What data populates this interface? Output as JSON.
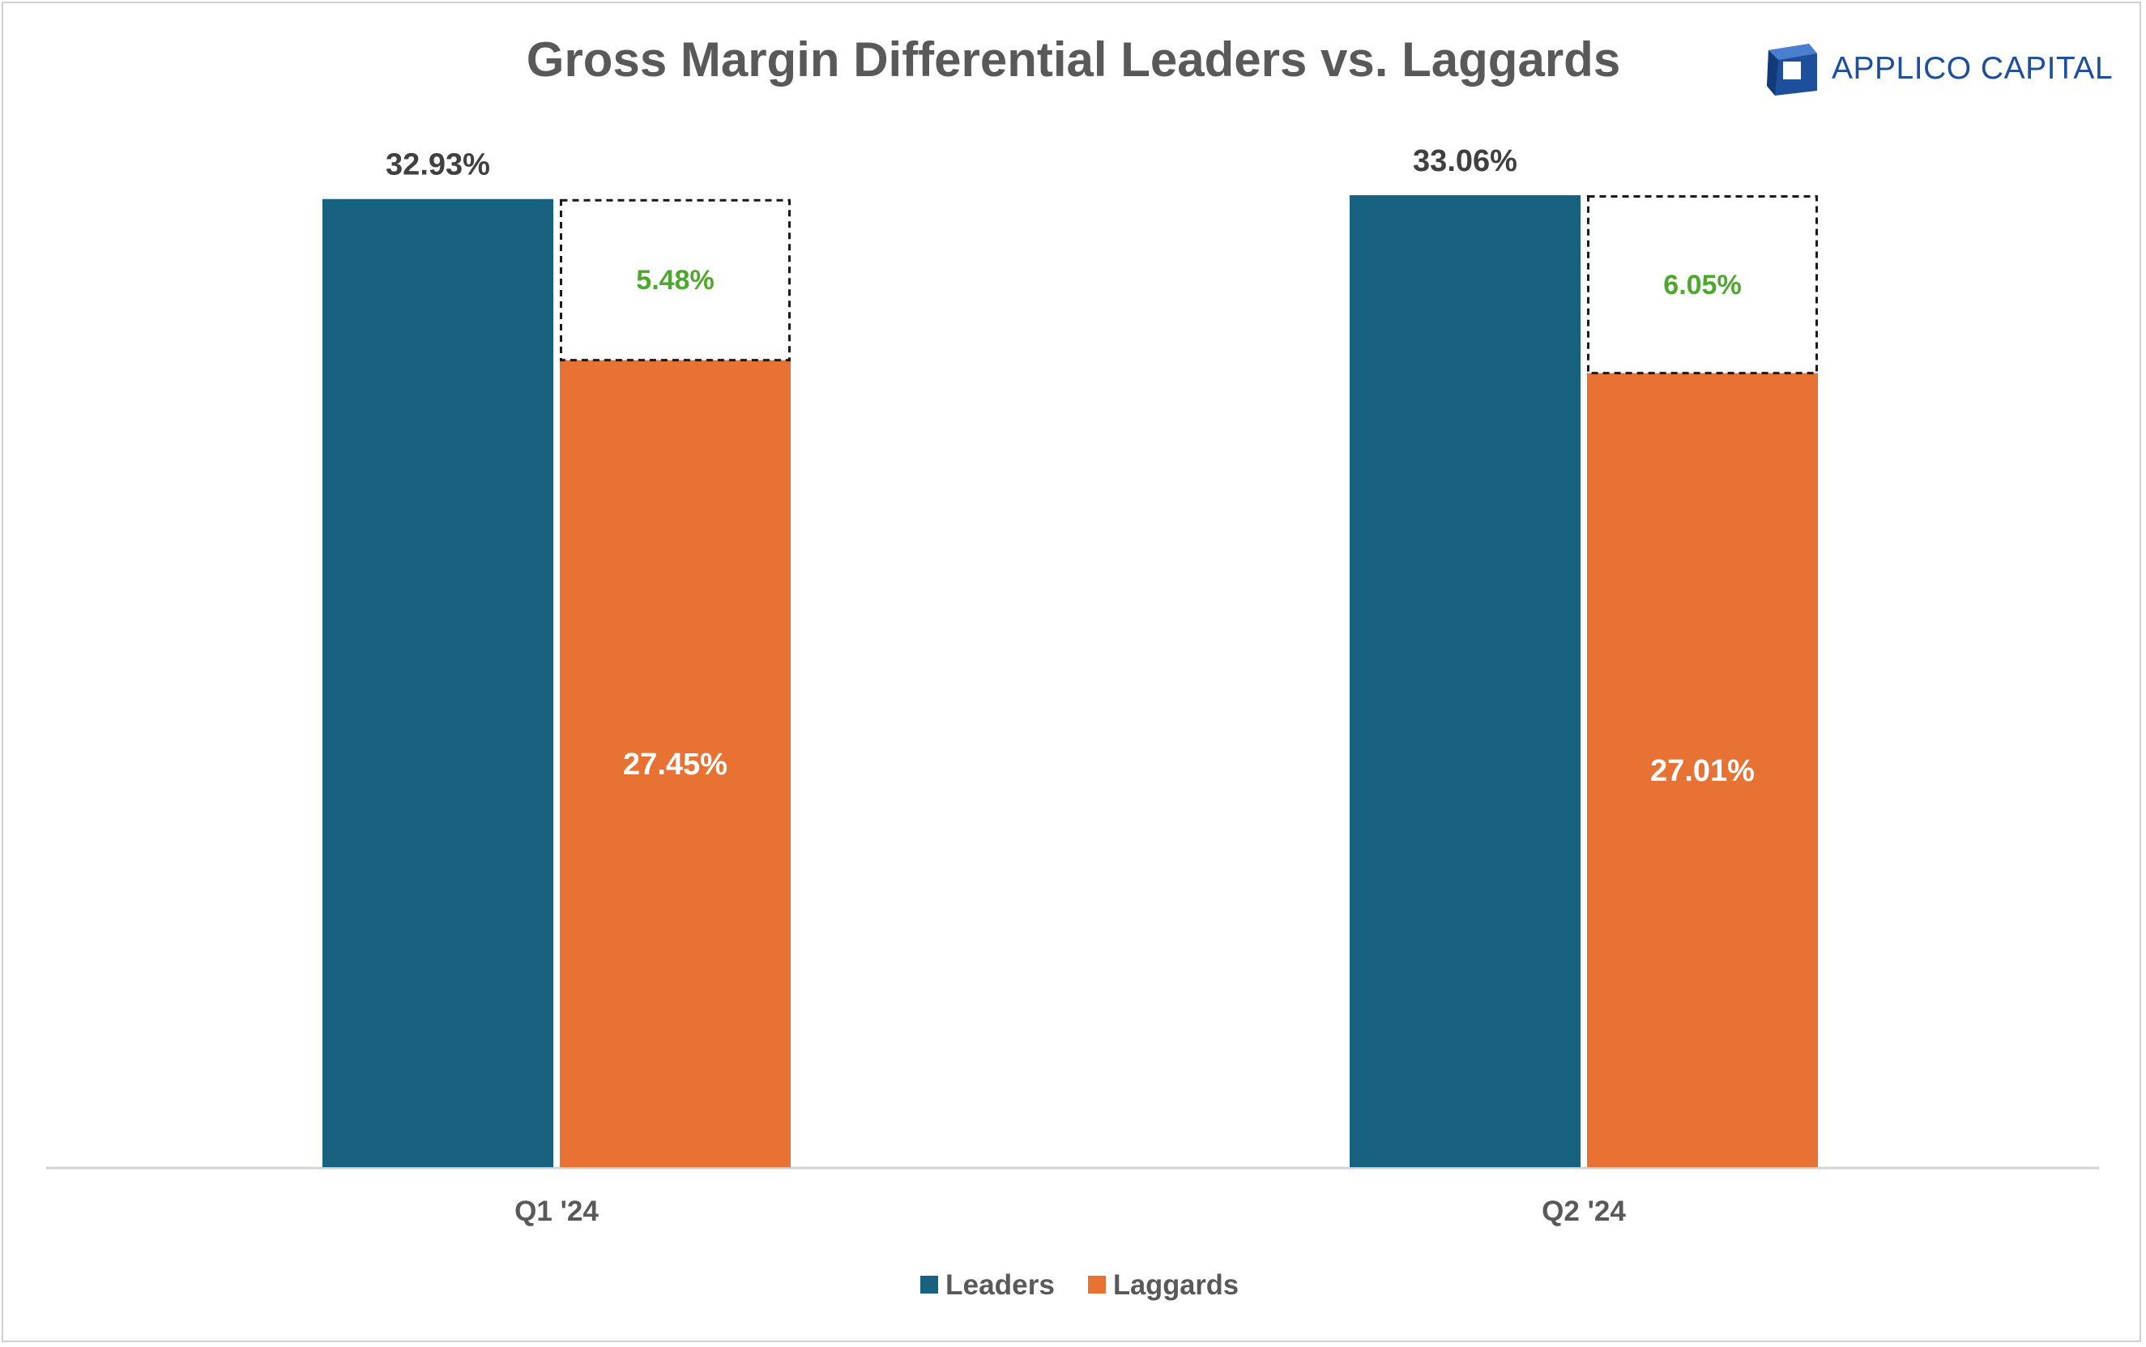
{
  "chart_data": {
    "type": "bar",
    "title": "Gross Margin Differential Leaders vs. Laggards",
    "categories": [
      "Q1 '24",
      "Q2 '24"
    ],
    "series": [
      {
        "name": "Leaders",
        "color": "#18617f",
        "values": [
          32.93,
          33.06
        ]
      },
      {
        "name": "Laggards",
        "color": "#e87234",
        "values": [
          27.45,
          27.01
        ]
      }
    ],
    "differential": {
      "color": "#4ea72e",
      "values": [
        5.48,
        6.05
      ]
    },
    "value_labels": {
      "leaders": [
        "32.93%",
        "33.06%"
      ],
      "laggards": [
        "27.45%",
        "27.01%"
      ],
      "differential": [
        "5.48%",
        "6.05%"
      ]
    },
    "ylim": [
      0,
      33.06
    ],
    "grid": false,
    "legend_position": "bottom-center"
  },
  "logo": {
    "text": "APPLICO CAPITAL",
    "icon": "applico-cube-icon",
    "color": "#1d4f9c"
  }
}
